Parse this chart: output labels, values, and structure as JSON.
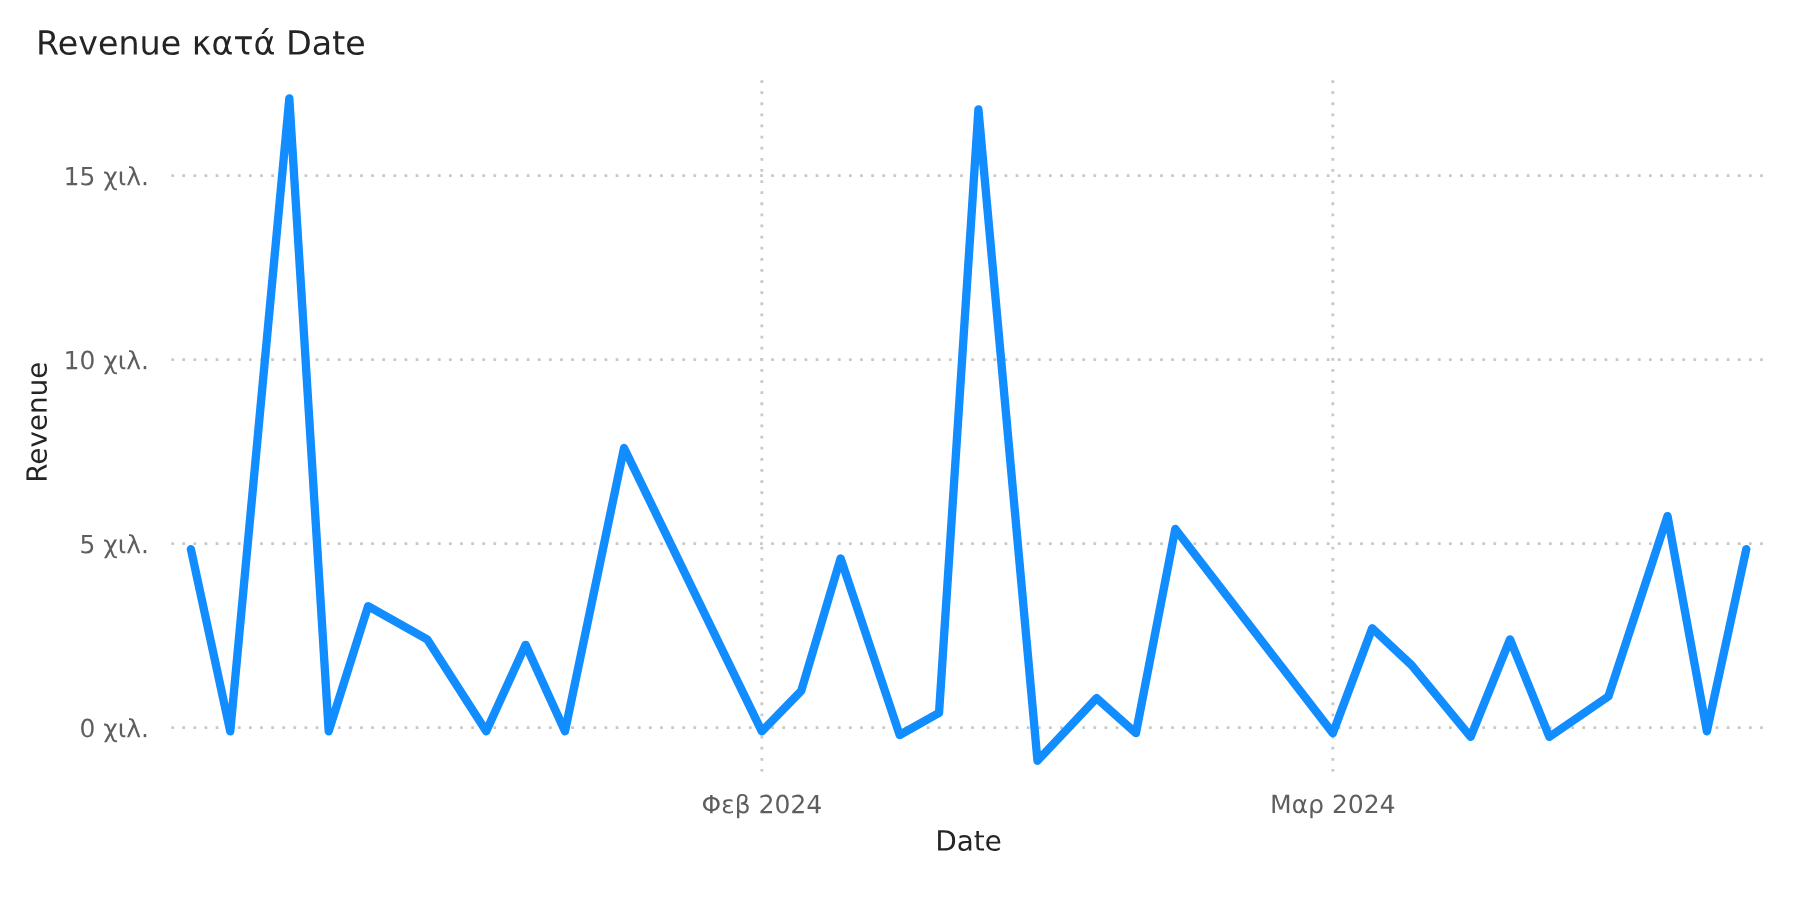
{
  "chart_data": {
    "type": "line",
    "title": "Revenue κατά Date",
    "xlabel": "Date",
    "ylabel": "Revenue",
    "x": [
      "2024-01-03",
      "2024-01-05",
      "2024-01-08",
      "2024-01-10",
      "2024-01-12",
      "2024-01-15",
      "2024-01-18",
      "2024-01-20",
      "2024-01-22",
      "2024-01-25",
      "2024-02-01",
      "2024-02-03",
      "2024-02-05",
      "2024-02-08",
      "2024-02-10",
      "2024-02-12",
      "2024-02-15",
      "2024-02-18",
      "2024-02-20",
      "2024-02-22",
      "2024-03-01",
      "2024-03-03",
      "2024-03-05",
      "2024-03-08",
      "2024-03-10",
      "2024-03-12",
      "2024-03-15",
      "2024-03-18",
      "2024-03-20",
      "2024-03-22"
    ],
    "series": [
      {
        "color": "#118dff",
        "values": [
          4.85,
          -0.1,
          17.1,
          -0.1,
          3.3,
          2.4,
          -0.1,
          2.25,
          -0.1,
          7.6,
          -0.1,
          1.0,
          4.6,
          -0.2,
          0.4,
          16.8,
          -0.9,
          0.8,
          -0.15,
          5.4,
          -0.15,
          2.7,
          1.7,
          -0.25,
          2.4,
          -0.25,
          0.85,
          5.75,
          -0.1,
          4.85
        ]
      }
    ],
    "xlim": [
      "2024-01-02",
      "2024-03-23"
    ],
    "ylim": [
      -1.2,
      17.8
    ],
    "xticks": [
      {
        "value": "2024-02-01",
        "label": "Φεβ 2024"
      },
      {
        "value": "2024-03-01",
        "label": "Μαρ 2024"
      }
    ],
    "yticks": [
      {
        "value": 0,
        "label": "0 χιλ."
      },
      {
        "value": 5,
        "label": "5 χιλ."
      },
      {
        "value": 10,
        "label": "10 χιλ."
      },
      {
        "value": 15,
        "label": "15 χιλ."
      }
    ],
    "grid": true,
    "legend": false,
    "marker": "none",
    "line_style": "solid"
  }
}
